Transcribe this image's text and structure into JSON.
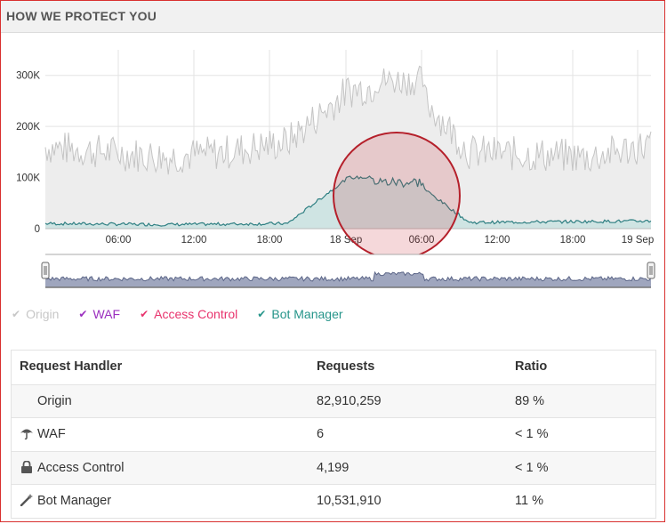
{
  "panel": {
    "title": "HOW WE PROTECT YOU"
  },
  "chart_data": {
    "type": "area",
    "y_ticks": [
      "0",
      "100K",
      "200K",
      "300K"
    ],
    "ylim": [
      0,
      350000
    ],
    "x_ticks": [
      "06:00",
      "12:00",
      "18:00",
      "18 Sep",
      "06:00",
      "12:00",
      "18:00",
      "19 Sep"
    ],
    "grid": true,
    "series": [
      {
        "name": "Origin",
        "approx_values": [
          160000,
          150000,
          140000,
          150000,
          170000,
          270000,
          290000,
          150000,
          145000,
          140000,
          165000
        ],
        "color": "#c8c8c8"
      },
      {
        "name": "Bot Manager",
        "approx_values": [
          10000,
          9000,
          8000,
          9000,
          10000,
          100000,
          100000,
          12000,
          13000,
          14000,
          15000
        ],
        "color": "#2e8c8c"
      }
    ]
  },
  "legend": [
    {
      "label": "Origin",
      "check": "✔",
      "color": "#c7c7c7"
    },
    {
      "label": "WAF",
      "check": "✔",
      "color": "#9b2fbf"
    },
    {
      "label": "Access Control",
      "check": "✔",
      "color": "#e8336d"
    },
    {
      "label": "Bot Manager",
      "check": "✔",
      "color": "#26958a"
    }
  ],
  "table": {
    "headers": {
      "handler": "Request Handler",
      "requests": "Requests",
      "ratio": "Ratio"
    },
    "rows": [
      {
        "handler": "Origin",
        "requests": "82,910,259",
        "ratio": "89 %",
        "icon": "none"
      },
      {
        "handler": "WAF",
        "requests": "6",
        "ratio": "< 1 %",
        "icon": "umbrella-icon"
      },
      {
        "handler": "Access Control",
        "requests": "4,199",
        "ratio": "< 1 %",
        "icon": "lock-icon"
      },
      {
        "handler": "Bot Manager",
        "requests": "10,531,910",
        "ratio": "11 %",
        "icon": "wand-icon"
      }
    ]
  }
}
